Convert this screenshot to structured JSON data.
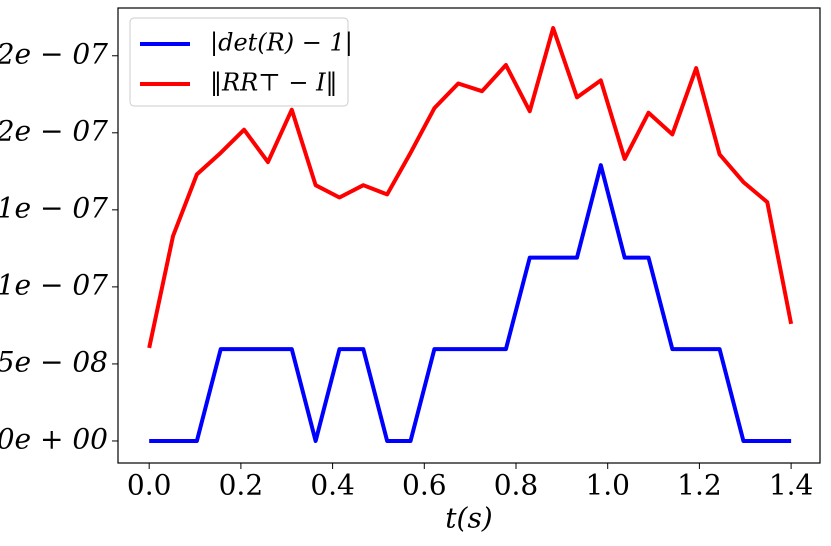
{
  "chart_data": {
    "type": "line",
    "x_label": "t(s)",
    "x": [
      0,
      0.052,
      0.104,
      0.156,
      0.207,
      0.259,
      0.311,
      0.363,
      0.415,
      0.467,
      0.519,
      0.57,
      0.622,
      0.674,
      0.726,
      0.778,
      0.83,
      0.881,
      0.933,
      0.985,
      1.037,
      1.089,
      1.141,
      1.193,
      1.244,
      1.296,
      1.348,
      1.4
    ],
    "series": [
      {
        "name": "|det(R) − 1|",
        "color": "#0000ff",
        "values": [
          0,
          0,
          0,
          5.96e-08,
          5.96e-08,
          5.96e-08,
          5.96e-08,
          0,
          5.96e-08,
          5.96e-08,
          0,
          0,
          5.96e-08,
          5.96e-08,
          5.96e-08,
          5.96e-08,
          1.19e-07,
          1.19e-07,
          1.19e-07,
          1.79e-07,
          1.19e-07,
          1.19e-07,
          5.96e-08,
          5.96e-08,
          5.96e-08,
          0,
          0,
          0
        ]
      },
      {
        "name": "‖RR⊤ − I‖",
        "color": "#ff0000",
        "values": [
          6.04e-08,
          1.33e-07,
          1.73e-07,
          1.87e-07,
          2.02e-07,
          1.81e-07,
          2.15e-07,
          1.66e-07,
          1.58e-07,
          1.66e-07,
          1.6e-07,
          1.87e-07,
          2.16e-07,
          2.32e-07,
          2.27e-07,
          2.44e-07,
          2.14e-07,
          2.68e-07,
          2.23e-07,
          2.34e-07,
          1.83e-07,
          2.13e-07,
          1.99e-07,
          2.42e-07,
          1.86e-07,
          1.68e-07,
          1.55e-07,
          7.6e-08
        ]
      }
    ],
    "xlim": [
      -0.068,
      1.463
    ],
    "xticks": [
      {
        "value": 0,
        "label": "0.0"
      },
      {
        "value": 0.2,
        "label": "0.2"
      },
      {
        "value": 0.4,
        "label": "0.4"
      },
      {
        "value": 0.6,
        "label": "0.6"
      },
      {
        "value": 0.8,
        "label": "0.8"
      },
      {
        "value": 1.0,
        "label": "1.0"
      },
      {
        "value": 1.2,
        "label": "1.2"
      },
      {
        "value": 1.4,
        "label": "1.4"
      }
    ],
    "ylim": [
      -1.43e-08,
      2.81e-07
    ],
    "yticks": [
      {
        "value": 0,
        "label": "0e + 00"
      },
      {
        "value": 5e-08,
        "label": "5e − 08"
      },
      {
        "value": 1e-07,
        "label": "1e − 07"
      },
      {
        "value": 1.5e-07,
        "label": "1e − 07"
      },
      {
        "value": 2e-07,
        "label": "2e − 07"
      },
      {
        "value": 2.5e-07,
        "label": "2e − 07"
      }
    ],
    "grid": false,
    "legend": "upper-left"
  }
}
